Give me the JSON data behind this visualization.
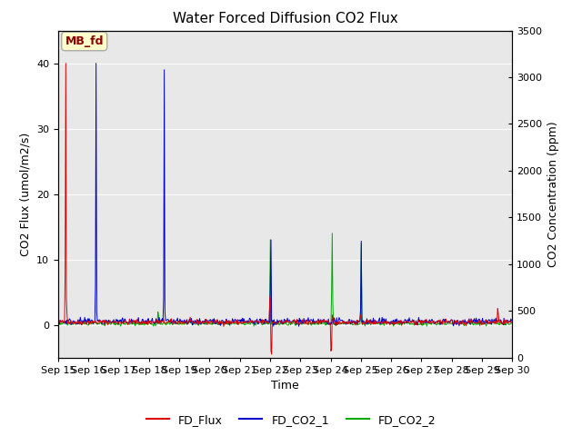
{
  "title": "Water Forced Diffusion CO2 Flux",
  "xlabel": "Time",
  "ylabel_left": "CO2 Flux (umol/m2/s)",
  "ylabel_right": "CO2 Concentration (ppm)",
  "ylim_left": [
    -5,
    45
  ],
  "ylim_right": [
    0,
    3500
  ],
  "site_label": "MB_fd",
  "xtick_labels": [
    "Sep 15",
    "Sep 16",
    "Sep 17",
    "Sep 18",
    "Sep 19",
    "Sep 20",
    "Sep 21",
    "Sep 22",
    "Sep 23",
    "Sep 24",
    "Sep 25",
    "Sep 26",
    "Sep 27",
    "Sep 28",
    "Sep 29",
    "Sep 30"
  ],
  "background_color": "#e8e8e8",
  "flux_color": "#dd0000",
  "co2_1_color": "#0000cc",
  "co2_2_color": "#00aa00",
  "legend_labels": [
    "FD_Flux",
    "FD_CO2_1",
    "FD_CO2_2"
  ],
  "title_fontsize": 11,
  "axis_label_fontsize": 9,
  "tick_fontsize": 8,
  "figsize": [
    6.4,
    4.8
  ],
  "dpi": 100
}
